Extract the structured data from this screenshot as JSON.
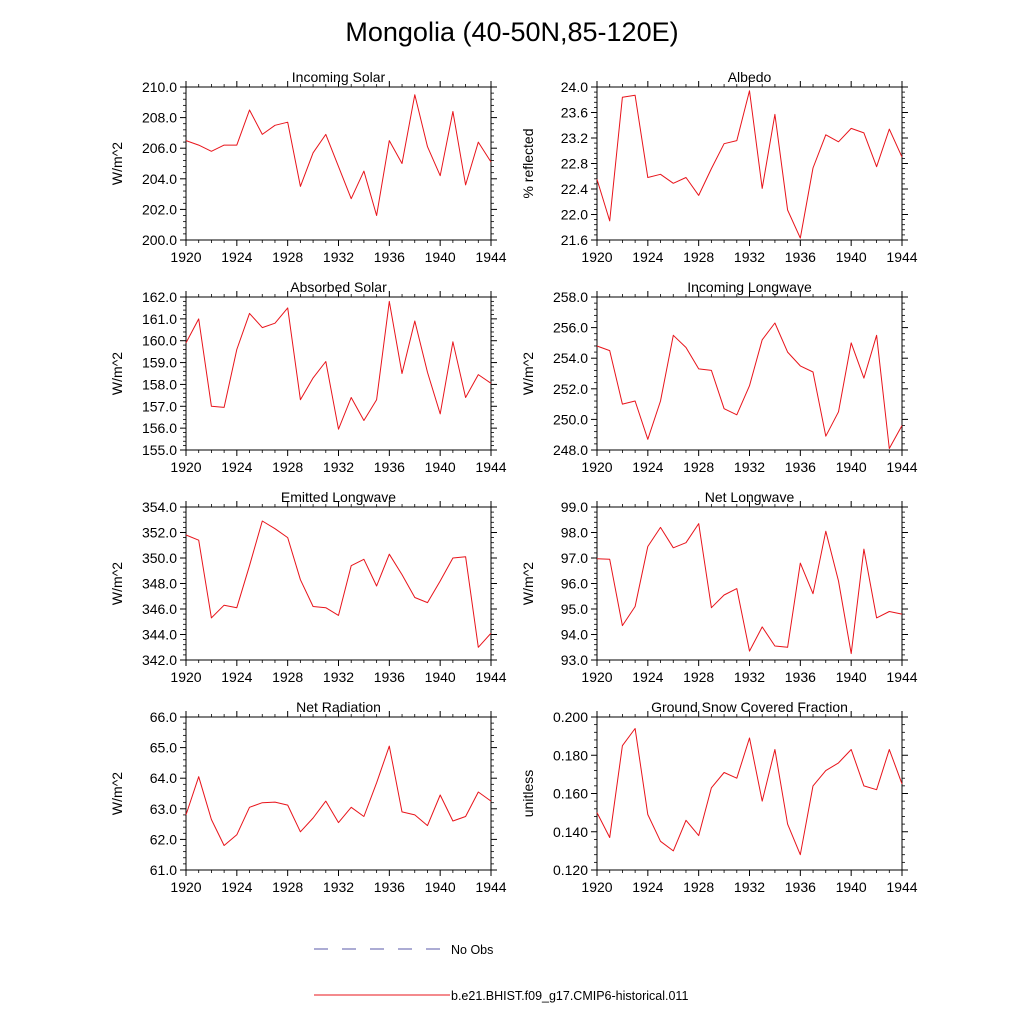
{
  "figure": {
    "title": "Mongolia (40-50N,85-120E)",
    "line_color": "#e8141b",
    "obs_color": "#5a5aa8",
    "legend": {
      "obs_label": "No Obs",
      "model_label": "b.e21.BHIST.f09_g17.CMIP6-historical.011"
    }
  },
  "chart_data": [
    {
      "type": "line",
      "title": "Incoming Solar",
      "ylabel": "W/m^2",
      "ylim": [
        200,
        210
      ],
      "yticks": [
        200,
        202,
        204,
        206,
        208,
        210
      ],
      "ytick_labels": [
        "200.0",
        "202.0",
        "204.0",
        "206.0",
        "208.0",
        "210.0"
      ],
      "xlim": [
        1920,
        1944
      ],
      "xticks": [
        1920,
        1924,
        1928,
        1932,
        1936,
        1940,
        1944
      ],
      "x": [
        1920,
        1921,
        1922,
        1923,
        1924,
        1925,
        1926,
        1927,
        1928,
        1929,
        1930,
        1931,
        1932,
        1933,
        1934,
        1935,
        1936,
        1937,
        1938,
        1939,
        1940,
        1941,
        1942,
        1943,
        1944
      ],
      "series": [
        {
          "values": [
            206.5,
            206.2,
            205.8,
            206.2,
            206.2,
            208.5,
            206.9,
            207.5,
            207.7,
            203.5,
            205.7,
            206.9,
            204.8,
            202.7,
            204.5,
            201.6,
            206.5,
            205.0,
            209.5,
            206.1,
            204.2,
            208.4,
            203.6,
            206.4,
            205.1
          ]
        }
      ]
    },
    {
      "type": "line",
      "title": "Albedo",
      "ylabel": "% reflected",
      "ylim": [
        21.6,
        24.0
      ],
      "yticks": [
        21.6,
        22.0,
        22.4,
        22.8,
        23.2,
        23.6,
        24.0
      ],
      "ytick_labels": [
        "21.6",
        "22.0",
        "22.4",
        "22.8",
        "23.2",
        "23.6",
        "24.0"
      ],
      "xlim": [
        1920,
        1944
      ],
      "xticks": [
        1920,
        1924,
        1928,
        1932,
        1936,
        1940,
        1944
      ],
      "x": [
        1920,
        1921,
        1922,
        1923,
        1924,
        1925,
        1926,
        1927,
        1928,
        1929,
        1930,
        1931,
        1932,
        1933,
        1934,
        1935,
        1936,
        1937,
        1938,
        1939,
        1940,
        1941,
        1942,
        1943,
        1944
      ],
      "series": [
        {
          "values": [
            22.55,
            21.9,
            23.84,
            23.87,
            22.58,
            22.63,
            22.49,
            22.58,
            22.3,
            22.72,
            23.11,
            23.16,
            23.94,
            22.41,
            23.57,
            22.07,
            21.63,
            22.73,
            23.25,
            23.14,
            23.35,
            23.28,
            22.75,
            23.34,
            22.9
          ]
        }
      ]
    },
    {
      "type": "line",
      "title": "Absorbed Solar",
      "ylabel": "W/m^2",
      "ylim": [
        155,
        162
      ],
      "yticks": [
        155,
        156,
        157,
        158,
        159,
        160,
        161,
        162
      ],
      "ytick_labels": [
        "155.0",
        "156.0",
        "157.0",
        "158.0",
        "159.0",
        "160.0",
        "161.0",
        "162.0"
      ],
      "xlim": [
        1920,
        1944
      ],
      "xticks": [
        1920,
        1924,
        1928,
        1932,
        1936,
        1940,
        1944
      ],
      "x": [
        1920,
        1921,
        1922,
        1923,
        1924,
        1925,
        1926,
        1927,
        1928,
        1929,
        1930,
        1931,
        1932,
        1933,
        1934,
        1935,
        1936,
        1937,
        1938,
        1939,
        1940,
        1941,
        1942,
        1943,
        1944
      ],
      "series": [
        {
          "values": [
            159.9,
            161.0,
            157.0,
            156.95,
            159.6,
            161.25,
            160.6,
            160.8,
            161.5,
            157.3,
            158.3,
            159.05,
            155.95,
            157.4,
            156.35,
            157.3,
            161.8,
            158.5,
            160.9,
            158.55,
            156.65,
            159.95,
            157.4,
            158.45,
            158.05
          ]
        }
      ]
    },
    {
      "type": "line",
      "title": "Incoming Longwave",
      "ylabel": "W/m^2",
      "ylim": [
        248,
        258
      ],
      "yticks": [
        248,
        250,
        252,
        254,
        256,
        258
      ],
      "ytick_labels": [
        "248.0",
        "250.0",
        "252.0",
        "254.0",
        "256.0",
        "258.0"
      ],
      "xlim": [
        1920,
        1944
      ],
      "xticks": [
        1920,
        1924,
        1928,
        1932,
        1936,
        1940,
        1944
      ],
      "x": [
        1920,
        1921,
        1922,
        1923,
        1924,
        1925,
        1926,
        1927,
        1928,
        1929,
        1930,
        1931,
        1932,
        1933,
        1934,
        1935,
        1936,
        1937,
        1938,
        1939,
        1940,
        1941,
        1942,
        1943,
        1944
      ],
      "series": [
        {
          "values": [
            254.8,
            254.5,
            251.0,
            251.2,
            248.7,
            251.2,
            255.5,
            254.7,
            253.3,
            253.2,
            250.7,
            250.3,
            252.2,
            255.2,
            256.3,
            254.4,
            253.5,
            253.1,
            248.9,
            250.5,
            255.0,
            252.7,
            255.5,
            248.1,
            249.6
          ]
        }
      ]
    },
    {
      "type": "line",
      "title": "Emitted Longwave",
      "ylabel": "W/m^2",
      "ylim": [
        342,
        354
      ],
      "yticks": [
        342,
        344,
        346,
        348,
        350,
        352,
        354
      ],
      "ytick_labels": [
        "342.0",
        "344.0",
        "346.0",
        "348.0",
        "350.0",
        "352.0",
        "354.0"
      ],
      "xlim": [
        1920,
        1944
      ],
      "xticks": [
        1920,
        1924,
        1928,
        1932,
        1936,
        1940,
        1944
      ],
      "x": [
        1920,
        1921,
        1922,
        1923,
        1924,
        1925,
        1926,
        1927,
        1928,
        1929,
        1930,
        1931,
        1932,
        1933,
        1934,
        1935,
        1936,
        1937,
        1938,
        1939,
        1940,
        1941,
        1942,
        1943,
        1944
      ],
      "series": [
        {
          "values": [
            351.8,
            351.4,
            345.3,
            346.3,
            346.1,
            349.4,
            352.9,
            352.3,
            351.6,
            348.3,
            346.2,
            346.1,
            345.5,
            349.4,
            349.9,
            347.8,
            350.3,
            348.7,
            346.9,
            346.5,
            348.2,
            350.0,
            350.1,
            343.0,
            344.1
          ]
        }
      ]
    },
    {
      "type": "line",
      "title": "Net Longwave",
      "ylabel": "W/m^2",
      "ylim": [
        93,
        99
      ],
      "yticks": [
        93,
        94,
        95,
        96,
        97,
        98,
        99
      ],
      "ytick_labels": [
        "93.0",
        "94.0",
        "95.0",
        "96.0",
        "97.0",
        "98.0",
        "99.0"
      ],
      "xlim": [
        1920,
        1944
      ],
      "xticks": [
        1920,
        1924,
        1928,
        1932,
        1936,
        1940,
        1944
      ],
      "x": [
        1920,
        1921,
        1922,
        1923,
        1924,
        1925,
        1926,
        1927,
        1928,
        1929,
        1930,
        1931,
        1932,
        1933,
        1934,
        1935,
        1936,
        1937,
        1938,
        1939,
        1940,
        1941,
        1942,
        1943,
        1944
      ],
      "series": [
        {
          "values": [
            96.97,
            96.95,
            94.35,
            95.1,
            97.45,
            98.2,
            97.4,
            97.6,
            98.35,
            95.05,
            95.55,
            95.8,
            93.35,
            94.3,
            93.55,
            93.5,
            96.8,
            95.6,
            98.05,
            96.1,
            93.25,
            97.35,
            94.65,
            94.9,
            94.8
          ]
        }
      ]
    },
    {
      "type": "line",
      "title": "Net Radiation",
      "ylabel": "W/m^2",
      "ylim": [
        61,
        66
      ],
      "yticks": [
        61,
        62,
        63,
        64,
        65,
        66
      ],
      "ytick_labels": [
        "61.0",
        "62.0",
        "63.0",
        "64.0",
        "65.0",
        "66.0"
      ],
      "xlim": [
        1920,
        1944
      ],
      "xticks": [
        1920,
        1924,
        1928,
        1932,
        1936,
        1940,
        1944
      ],
      "x": [
        1920,
        1921,
        1922,
        1923,
        1924,
        1925,
        1926,
        1927,
        1928,
        1929,
        1930,
        1931,
        1932,
        1933,
        1934,
        1935,
        1936,
        1937,
        1938,
        1939,
        1940,
        1941,
        1942,
        1943,
        1944
      ],
      "series": [
        {
          "values": [
            62.8,
            64.05,
            62.65,
            61.8,
            62.15,
            63.05,
            63.2,
            63.22,
            63.12,
            62.25,
            62.7,
            63.25,
            62.55,
            63.05,
            62.75,
            63.85,
            65.05,
            62.9,
            62.8,
            62.45,
            63.45,
            62.6,
            62.75,
            63.55,
            63.25
          ]
        }
      ]
    },
    {
      "type": "line",
      "title": "Ground Snow Covered Fraction",
      "ylabel": "unitless",
      "ylim": [
        0.12,
        0.2
      ],
      "yticks": [
        0.12,
        0.14,
        0.16,
        0.18,
        0.2
      ],
      "ytick_labels": [
        "0.120",
        "0.140",
        "0.160",
        "0.180",
        "0.200"
      ],
      "xlim": [
        1920,
        1944
      ],
      "xticks": [
        1920,
        1924,
        1928,
        1932,
        1936,
        1940,
        1944
      ],
      "x": [
        1920,
        1921,
        1922,
        1923,
        1924,
        1925,
        1926,
        1927,
        1928,
        1929,
        1930,
        1931,
        1932,
        1933,
        1934,
        1935,
        1936,
        1937,
        1938,
        1939,
        1940,
        1941,
        1942,
        1943,
        1944
      ],
      "series": [
        {
          "values": [
            0.15,
            0.137,
            0.185,
            0.194,
            0.149,
            0.135,
            0.13,
            0.146,
            0.138,
            0.163,
            0.171,
            0.168,
            0.189,
            0.156,
            0.183,
            0.144,
            0.128,
            0.164,
            0.172,
            0.176,
            0.183,
            0.164,
            0.162,
            0.183,
            0.165
          ]
        }
      ]
    }
  ]
}
